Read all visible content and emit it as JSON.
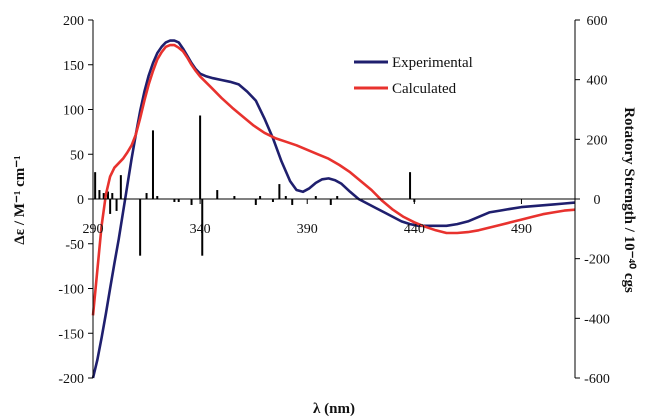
{
  "chart_data": {
    "type": "line",
    "xlabel": "λ (nm)",
    "ylabel": "Δε / M⁻¹ cm⁻¹",
    "y2label": "Rotatory Strength / 10⁻⁴⁰ cgs",
    "xlim": [
      290,
      515
    ],
    "ylim": [
      -200,
      200
    ],
    "y2lim": [
      -600,
      600
    ],
    "x_ticks": [
      290,
      340,
      390,
      440,
      490
    ],
    "y_ticks": [
      200,
      150,
      100,
      50,
      0,
      -50,
      -100,
      -150,
      -200
    ],
    "y2_ticks": [
      600,
      400,
      200,
      0,
      -200,
      -400,
      -600
    ],
    "legend_position": "top-right",
    "grid": false,
    "series": [
      {
        "name": "Experimental",
        "color": "#1f1f6e",
        "x": [
          290,
          292,
          294,
          296,
          298,
          300,
          302,
          304,
          306,
          308,
          310,
          312,
          314,
          316,
          318,
          320,
          322,
          324,
          326,
          328,
          330,
          332,
          334,
          336,
          338,
          340,
          343,
          346,
          350,
          354,
          358,
          362,
          366,
          370,
          374,
          378,
          382,
          385,
          388,
          391,
          394,
          397,
          400,
          403,
          406,
          410,
          414,
          418,
          422,
          426,
          430,
          434,
          438,
          442,
          446,
          450,
          455,
          460,
          465,
          470,
          475,
          480,
          485,
          490,
          495,
          500,
          505,
          510,
          515
        ],
        "values": [
          -200,
          -180,
          -155,
          -128,
          -100,
          -72,
          -45,
          -15,
          15,
          45,
          72,
          98,
          120,
          138,
          152,
          163,
          170,
          175,
          177,
          177,
          175,
          168,
          160,
          152,
          145,
          140,
          137,
          135,
          133,
          131,
          128,
          120,
          110,
          90,
          68,
          42,
          20,
          10,
          8,
          12,
          18,
          22,
          23,
          21,
          17,
          8,
          0,
          -5,
          -10,
          -15,
          -20,
          -25,
          -28,
          -30,
          -30,
          -30,
          -30,
          -28,
          -25,
          -20,
          -15,
          -13,
          -11,
          -9,
          -8,
          -7,
          -6,
          -5,
          -4
        ]
      },
      {
        "name": "Calculated",
        "color": "#e8322e",
        "x": [
          290,
          292,
          294,
          296,
          298,
          300,
          302,
          304,
          306,
          308,
          310,
          312,
          314,
          316,
          318,
          320,
          322,
          324,
          326,
          328,
          330,
          332,
          334,
          336,
          338,
          340,
          345,
          350,
          355,
          360,
          365,
          370,
          375,
          380,
          385,
          390,
          395,
          400,
          405,
          410,
          415,
          420,
          425,
          430,
          435,
          440,
          445,
          450,
          455,
          460,
          465,
          470,
          475,
          480,
          485,
          490,
          495,
          500,
          505,
          510,
          515
        ],
        "values": [
          -130,
          -80,
          -30,
          5,
          25,
          35,
          40,
          45,
          52,
          60,
          72,
          90,
          110,
          128,
          143,
          156,
          164,
          170,
          172,
          172,
          169,
          165,
          158,
          150,
          143,
          137,
          125,
          113,
          102,
          92,
          82,
          74,
          68,
          64,
          60,
          55,
          50,
          45,
          38,
          30,
          20,
          10,
          -2,
          -12,
          -20,
          -26,
          -31,
          -35,
          -38,
          -38,
          -37,
          -35,
          -32,
          -29,
          -26,
          -23,
          -20,
          -17,
          -15,
          -13,
          -12
        ]
      }
    ],
    "rotatory_strength_sticks": {
      "x": [
        291,
        293,
        295,
        297,
        298,
        299,
        301,
        303,
        312,
        315,
        318,
        320,
        328,
        330,
        336,
        340,
        341,
        348,
        356,
        366,
        368,
        374,
        377,
        380,
        383,
        394,
        401,
        404,
        438,
        440
      ],
      "values": [
        90,
        30,
        20,
        25,
        -50,
        20,
        -40,
        80,
        -190,
        20,
        230,
        10,
        -10,
        -10,
        -20,
        280,
        -190,
        30,
        10,
        -20,
        10,
        -10,
        50,
        10,
        -20,
        10,
        -20,
        10,
        90,
        -10
      ]
    }
  }
}
